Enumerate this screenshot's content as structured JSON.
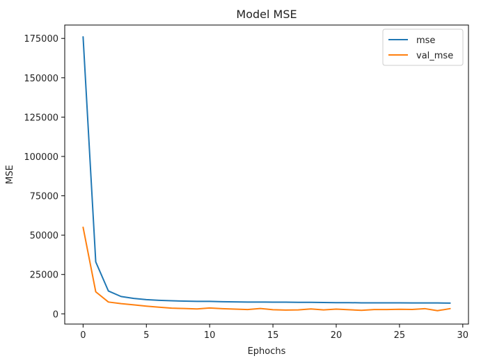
{
  "chart_data": {
    "type": "line",
    "title": "Model MSE",
    "xlabel": "Ephochs",
    "ylabel": "MSE",
    "xlim": [
      -1.45,
      30.45
    ],
    "ylim": [
      -6500,
      183500
    ],
    "xticks": [
      0,
      5,
      10,
      15,
      20,
      25,
      30
    ],
    "yticks": [
      0,
      25000,
      50000,
      75000,
      100000,
      125000,
      150000,
      175000
    ],
    "grid": false,
    "legend_position": "top-right",
    "x": [
      0,
      1,
      2,
      3,
      4,
      5,
      6,
      7,
      8,
      9,
      10,
      11,
      12,
      13,
      14,
      15,
      16,
      17,
      18,
      19,
      20,
      21,
      22,
      23,
      24,
      25,
      26,
      27,
      28,
      29
    ],
    "series": [
      {
        "name": "mse",
        "color": "#1f77b4",
        "values": [
          176000,
          33000,
          14500,
          11000,
          9800,
          9000,
          8600,
          8300,
          8100,
          7900,
          7900,
          7700,
          7600,
          7500,
          7500,
          7400,
          7400,
          7300,
          7300,
          7200,
          7100,
          7100,
          7000,
          7000,
          7000,
          7000,
          6900,
          6900,
          6900,
          6800
        ]
      },
      {
        "name": "val_mse",
        "color": "#ff7f0e",
        "values": [
          55000,
          14000,
          7500,
          6500,
          5700,
          4900,
          4200,
          3600,
          3400,
          3100,
          3700,
          3300,
          3000,
          2700,
          3400,
          2600,
          2400,
          2500,
          3100,
          2500,
          3000,
          2600,
          2200,
          2700,
          2700,
          2900,
          2800,
          3300,
          2000,
          3300
        ]
      }
    ]
  }
}
